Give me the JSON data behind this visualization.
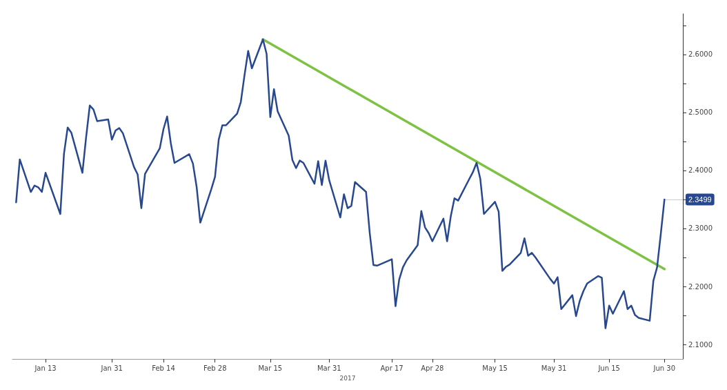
{
  "chart_data": {
    "type": "line",
    "xlabel": "2017",
    "xlim": [
      "2017-01-04",
      "2017-07-05"
    ],
    "xticks": [
      {
        "value": "2017-01-13",
        "label": "Jan 13"
      },
      {
        "value": "2017-01-31",
        "label": "Jan 31"
      },
      {
        "value": "2017-02-14",
        "label": "Feb 14"
      },
      {
        "value": "2017-02-28",
        "label": "Feb 28"
      },
      {
        "value": "2017-03-15",
        "label": "Mar 15"
      },
      {
        "value": "2017-03-31",
        "label": "Mar 31"
      },
      {
        "value": "2017-04-17",
        "label": "Apr 17"
      },
      {
        "value": "2017-04-28",
        "label": "Apr 28"
      },
      {
        "value": "2017-05-15",
        "label": "May 15"
      },
      {
        "value": "2017-05-31",
        "label": "May 31"
      },
      {
        "value": "2017-06-15",
        "label": "Jun 15"
      },
      {
        "value": "2017-06-30",
        "label": "Jun 30"
      }
    ],
    "ylim": [
      2.075,
      2.67
    ],
    "yticks": [
      {
        "value": 2.1,
        "label": "2.1000"
      },
      {
        "value": 2.15,
        "label": null
      },
      {
        "value": 2.2,
        "label": "2.2000"
      },
      {
        "value": 2.25,
        "label": null
      },
      {
        "value": 2.3,
        "label": "2.3000"
      },
      {
        "value": 2.35,
        "label": null
      },
      {
        "value": 2.4,
        "label": "2.4000"
      },
      {
        "value": 2.45,
        "label": null
      },
      {
        "value": 2.5,
        "label": "2.5000"
      },
      {
        "value": 2.55,
        "label": null
      },
      {
        "value": 2.6,
        "label": "2.6000"
      },
      {
        "value": 2.65,
        "label": null
      }
    ],
    "grid": false,
    "marker": "none",
    "line_style": "solid",
    "series": [
      {
        "color": "#27478f",
        "x": [
          "2017-01-05",
          "2017-01-06",
          "2017-01-09",
          "2017-01-10",
          "2017-01-11",
          "2017-01-12",
          "2017-01-13",
          "2017-01-17",
          "2017-01-18",
          "2017-01-19",
          "2017-01-20",
          "2017-01-23",
          "2017-01-24",
          "2017-01-25",
          "2017-01-26",
          "2017-01-27",
          "2017-01-30",
          "2017-01-31",
          "2017-02-01",
          "2017-02-02",
          "2017-02-03",
          "2017-02-06",
          "2017-02-07",
          "2017-02-08",
          "2017-02-09",
          "2017-02-10",
          "2017-02-13",
          "2017-02-14",
          "2017-02-15",
          "2017-02-16",
          "2017-02-17",
          "2017-02-21",
          "2017-02-22",
          "2017-02-23",
          "2017-02-24",
          "2017-02-27",
          "2017-02-28",
          "2017-03-01",
          "2017-03-02",
          "2017-03-03",
          "2017-03-06",
          "2017-03-07",
          "2017-03-08",
          "2017-03-09",
          "2017-03-10",
          "2017-03-13",
          "2017-03-14",
          "2017-03-15",
          "2017-03-16",
          "2017-03-17",
          "2017-03-20",
          "2017-03-21",
          "2017-03-22",
          "2017-03-23",
          "2017-03-24",
          "2017-03-27",
          "2017-03-28",
          "2017-03-29",
          "2017-03-30",
          "2017-03-31",
          "2017-04-03",
          "2017-04-04",
          "2017-04-05",
          "2017-04-06",
          "2017-04-07",
          "2017-04-10",
          "2017-04-11",
          "2017-04-12",
          "2017-04-13",
          "2017-04-17",
          "2017-04-18",
          "2017-04-19",
          "2017-04-20",
          "2017-04-21",
          "2017-04-24",
          "2017-04-25",
          "2017-04-26",
          "2017-04-27",
          "2017-04-28",
          "2017-05-01",
          "2017-05-02",
          "2017-05-03",
          "2017-05-04",
          "2017-05-05",
          "2017-05-08",
          "2017-05-09",
          "2017-05-10",
          "2017-05-11",
          "2017-05-12",
          "2017-05-15",
          "2017-05-16",
          "2017-05-17",
          "2017-05-18",
          "2017-05-19",
          "2017-05-22",
          "2017-05-23",
          "2017-05-24",
          "2017-05-25",
          "2017-05-26",
          "2017-05-30",
          "2017-05-31",
          "2017-06-01",
          "2017-06-02",
          "2017-06-05",
          "2017-06-06",
          "2017-06-07",
          "2017-06-08",
          "2017-06-09",
          "2017-06-12",
          "2017-06-13",
          "2017-06-14",
          "2017-06-15",
          "2017-06-16",
          "2017-06-19",
          "2017-06-20",
          "2017-06-21",
          "2017-06-22",
          "2017-06-23",
          "2017-06-26",
          "2017-06-27",
          "2017-06-28",
          "2017-06-29",
          "2017-06-30"
        ],
        "values": [
          2.345,
          2.419,
          2.363,
          2.374,
          2.371,
          2.363,
          2.396,
          2.325,
          2.429,
          2.474,
          2.465,
          2.396,
          2.457,
          2.512,
          2.505,
          2.485,
          2.488,
          2.453,
          2.469,
          2.473,
          2.464,
          2.406,
          2.393,
          2.335,
          2.394,
          2.405,
          2.438,
          2.471,
          2.493,
          2.447,
          2.413,
          2.428,
          2.412,
          2.372,
          2.31,
          2.368,
          2.389,
          2.453,
          2.478,
          2.478,
          2.498,
          2.518,
          2.564,
          2.606,
          2.576,
          2.626,
          2.601,
          2.492,
          2.54,
          2.502,
          2.46,
          2.418,
          2.404,
          2.417,
          2.413,
          2.377,
          2.416,
          2.375,
          2.417,
          2.383,
          2.319,
          2.359,
          2.335,
          2.339,
          2.38,
          2.363,
          2.292,
          2.237,
          2.236,
          2.247,
          2.166,
          2.212,
          2.233,
          2.245,
          2.271,
          2.33,
          2.302,
          2.292,
          2.278,
          2.317,
          2.278,
          2.321,
          2.352,
          2.348,
          2.385,
          2.397,
          2.413,
          2.386,
          2.325,
          2.346,
          2.329,
          2.227,
          2.234,
          2.238,
          2.258,
          2.283,
          2.253,
          2.258,
          2.25,
          2.213,
          2.205,
          2.216,
          2.161,
          2.185,
          2.149,
          2.175,
          2.192,
          2.205,
          2.218,
          2.215,
          2.128,
          2.167,
          2.153,
          2.192,
          2.161,
          2.167,
          2.151,
          2.146,
          2.141,
          2.21,
          2.233,
          2.29,
          2.3499
        ]
      },
      {
        "type": "line",
        "color": "#7dc242",
        "x": [
          "2017-03-13",
          "2017-06-30"
        ],
        "values": [
          2.626,
          2.23
        ]
      }
    ],
    "annotations": [
      {
        "text": "2.3499",
        "x": "2017-06-30",
        "y": 2.3499
      }
    ]
  }
}
